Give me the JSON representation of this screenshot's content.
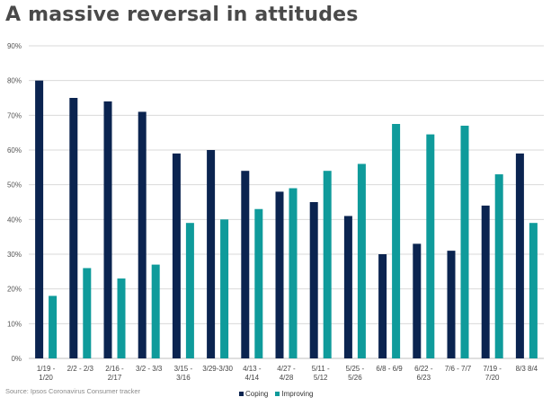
{
  "title": "A massive reversal in attitudes",
  "source": "Source: Ipsos Coronavirus Consumer tracker",
  "chart_data": {
    "type": "bar",
    "title": "A massive reversal in attitudes",
    "categories": [
      [
        "1/19 -",
        "1/20"
      ],
      [
        "2/2 - 2/3"
      ],
      [
        "2/16 -",
        "2/17"
      ],
      [
        "3/2 - 3/3"
      ],
      [
        "3/15 -",
        "3/16"
      ],
      [
        "3/29-3/30"
      ],
      [
        "4/13 -",
        "4/14"
      ],
      [
        "4/27 -",
        "4/28"
      ],
      [
        "5/11 -",
        "5/12"
      ],
      [
        "5/25 -",
        "5/26"
      ],
      [
        "6/8 - 6/9"
      ],
      [
        "6/22 -",
        "6/23"
      ],
      [
        "7/6 - 7/7"
      ],
      [
        "7/19 -",
        "7/20"
      ],
      [
        "8/3 8/4"
      ]
    ],
    "series": [
      {
        "name": "Coping",
        "color": "#0b2450",
        "values": [
          80,
          75,
          74,
          71,
          59,
          60,
          54,
          48,
          45,
          41,
          30,
          33,
          31,
          44,
          59
        ]
      },
      {
        "name": "Improving",
        "color": "#0f9b9b",
        "values": [
          18,
          26,
          23,
          27,
          39,
          40,
          43,
          49,
          54,
          56,
          67.5,
          64.5,
          67,
          53,
          39
        ]
      }
    ],
    "ylim": [
      0,
      90
    ],
    "yticks": [
      "0%",
      "10%",
      "20%",
      "30%",
      "40%",
      "50%",
      "60%",
      "70%",
      "80%",
      "90%"
    ],
    "grid": true,
    "legend": "bottom-center"
  }
}
